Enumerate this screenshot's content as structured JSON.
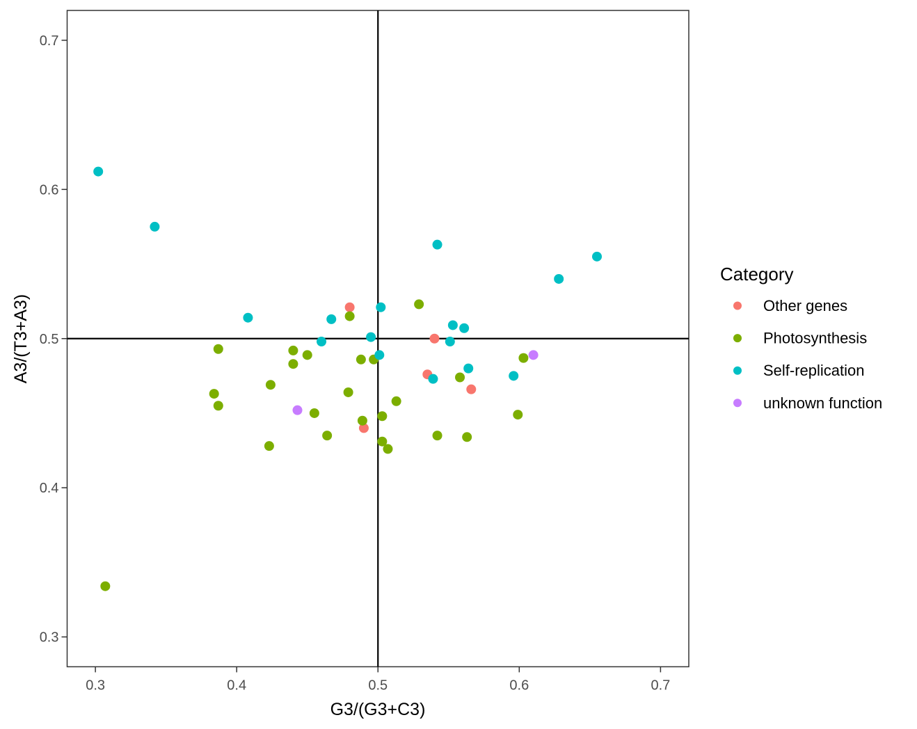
{
  "chart_data": {
    "type": "scatter",
    "title": "",
    "xlabel": "G3/(G3+C3)",
    "ylabel": "A3/(T3+A3)",
    "xlim": [
      0.28,
      0.72
    ],
    "ylim": [
      0.28,
      0.72
    ],
    "x_ticks": [
      0.3,
      0.4,
      0.5,
      0.6,
      0.7
    ],
    "y_ticks": [
      0.3,
      0.4,
      0.5,
      0.6,
      0.7
    ],
    "grid": false,
    "legend_position": "right",
    "legend_title": "Category",
    "reference_lines": {
      "x": 0.5,
      "y": 0.5
    },
    "point_radius_px": 7,
    "colors": {
      "panel_border": "#333333",
      "tick_mark": "#333333",
      "tick_text": "#4D4D4D",
      "reference_line": "#000000"
    },
    "series": [
      {
        "name": "Other genes",
        "color": "#F8766D",
        "points": [
          [
            0.48,
            0.521
          ],
          [
            0.49,
            0.44
          ],
          [
            0.535,
            0.476
          ],
          [
            0.54,
            0.5
          ],
          [
            0.566,
            0.466
          ]
        ]
      },
      {
        "name": "Photosynthesis",
        "color": "#7CAE00",
        "points": [
          [
            0.307,
            0.334
          ],
          [
            0.384,
            0.463
          ],
          [
            0.387,
            0.493
          ],
          [
            0.387,
            0.455
          ],
          [
            0.423,
            0.428
          ],
          [
            0.424,
            0.469
          ],
          [
            0.44,
            0.492
          ],
          [
            0.44,
            0.483
          ],
          [
            0.45,
            0.489
          ],
          [
            0.455,
            0.45
          ],
          [
            0.464,
            0.435
          ],
          [
            0.479,
            0.464
          ],
          [
            0.48,
            0.515
          ],
          [
            0.488,
            0.486
          ],
          [
            0.489,
            0.445
          ],
          [
            0.497,
            0.486
          ],
          [
            0.503,
            0.448
          ],
          [
            0.503,
            0.431
          ],
          [
            0.507,
            0.426
          ],
          [
            0.513,
            0.458
          ],
          [
            0.529,
            0.523
          ],
          [
            0.542,
            0.435
          ],
          [
            0.558,
            0.474
          ],
          [
            0.563,
            0.434
          ],
          [
            0.599,
            0.449
          ],
          [
            0.603,
            0.487
          ]
        ]
      },
      {
        "name": "Self-replication",
        "color": "#00BFC4",
        "points": [
          [
            0.302,
            0.612
          ],
          [
            0.342,
            0.575
          ],
          [
            0.408,
            0.514
          ],
          [
            0.46,
            0.498
          ],
          [
            0.467,
            0.513
          ],
          [
            0.495,
            0.501
          ],
          [
            0.501,
            0.489
          ],
          [
            0.502,
            0.521
          ],
          [
            0.539,
            0.473
          ],
          [
            0.542,
            0.563
          ],
          [
            0.551,
            0.498
          ],
          [
            0.553,
            0.509
          ],
          [
            0.561,
            0.507
          ],
          [
            0.564,
            0.48
          ],
          [
            0.596,
            0.475
          ],
          [
            0.628,
            0.54
          ],
          [
            0.655,
            0.555
          ]
        ]
      },
      {
        "name": "unknown function",
        "color": "#C77CFF",
        "points": [
          [
            0.443,
            0.452
          ],
          [
            0.61,
            0.489
          ]
        ]
      }
    ]
  }
}
